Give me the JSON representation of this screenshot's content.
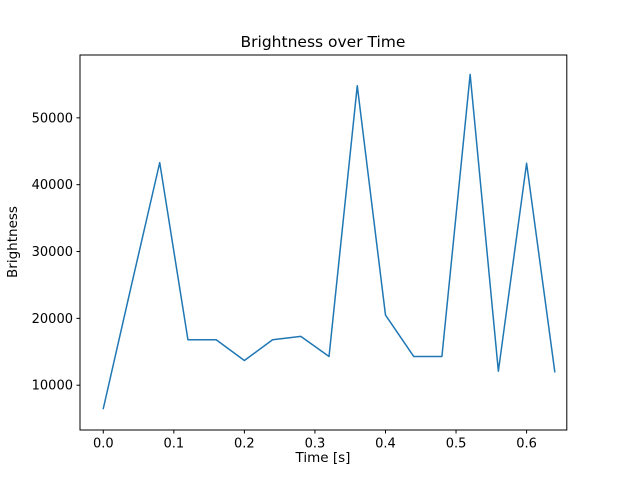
{
  "chart_data": {
    "type": "line",
    "title": "Brightness over Time",
    "xlabel": "Time [s]",
    "ylabel": "Brightness",
    "x": [
      0.0,
      0.04,
      0.08,
      0.12,
      0.16,
      0.2,
      0.24,
      0.28,
      0.32,
      0.36,
      0.4,
      0.44,
      0.48,
      0.52,
      0.56,
      0.6,
      0.64
    ],
    "y": [
      6500,
      25000,
      43300,
      16800,
      16800,
      13700,
      16800,
      17300,
      14300,
      54800,
      20500,
      14300,
      14300,
      56500,
      12100,
      43200,
      12000
    ],
    "xlim": [
      -0.033,
      0.657
    ],
    "ylim": [
      3300,
      59400
    ],
    "xticks": [
      0.0,
      0.1,
      0.2,
      0.3,
      0.4,
      0.5,
      0.6
    ],
    "xtick_labels": [
      "0.0",
      "0.1",
      "0.2",
      "0.3",
      "0.4",
      "0.5",
      "0.6"
    ],
    "yticks": [
      10000,
      20000,
      30000,
      40000,
      50000
    ],
    "ytick_labels": [
      "10000",
      "20000",
      "30000",
      "40000",
      "50000"
    ],
    "line_color": "#1f77b4",
    "axis_color": "#000000",
    "background_color": "#ffffff",
    "grid": false,
    "legend_position": "none"
  }
}
